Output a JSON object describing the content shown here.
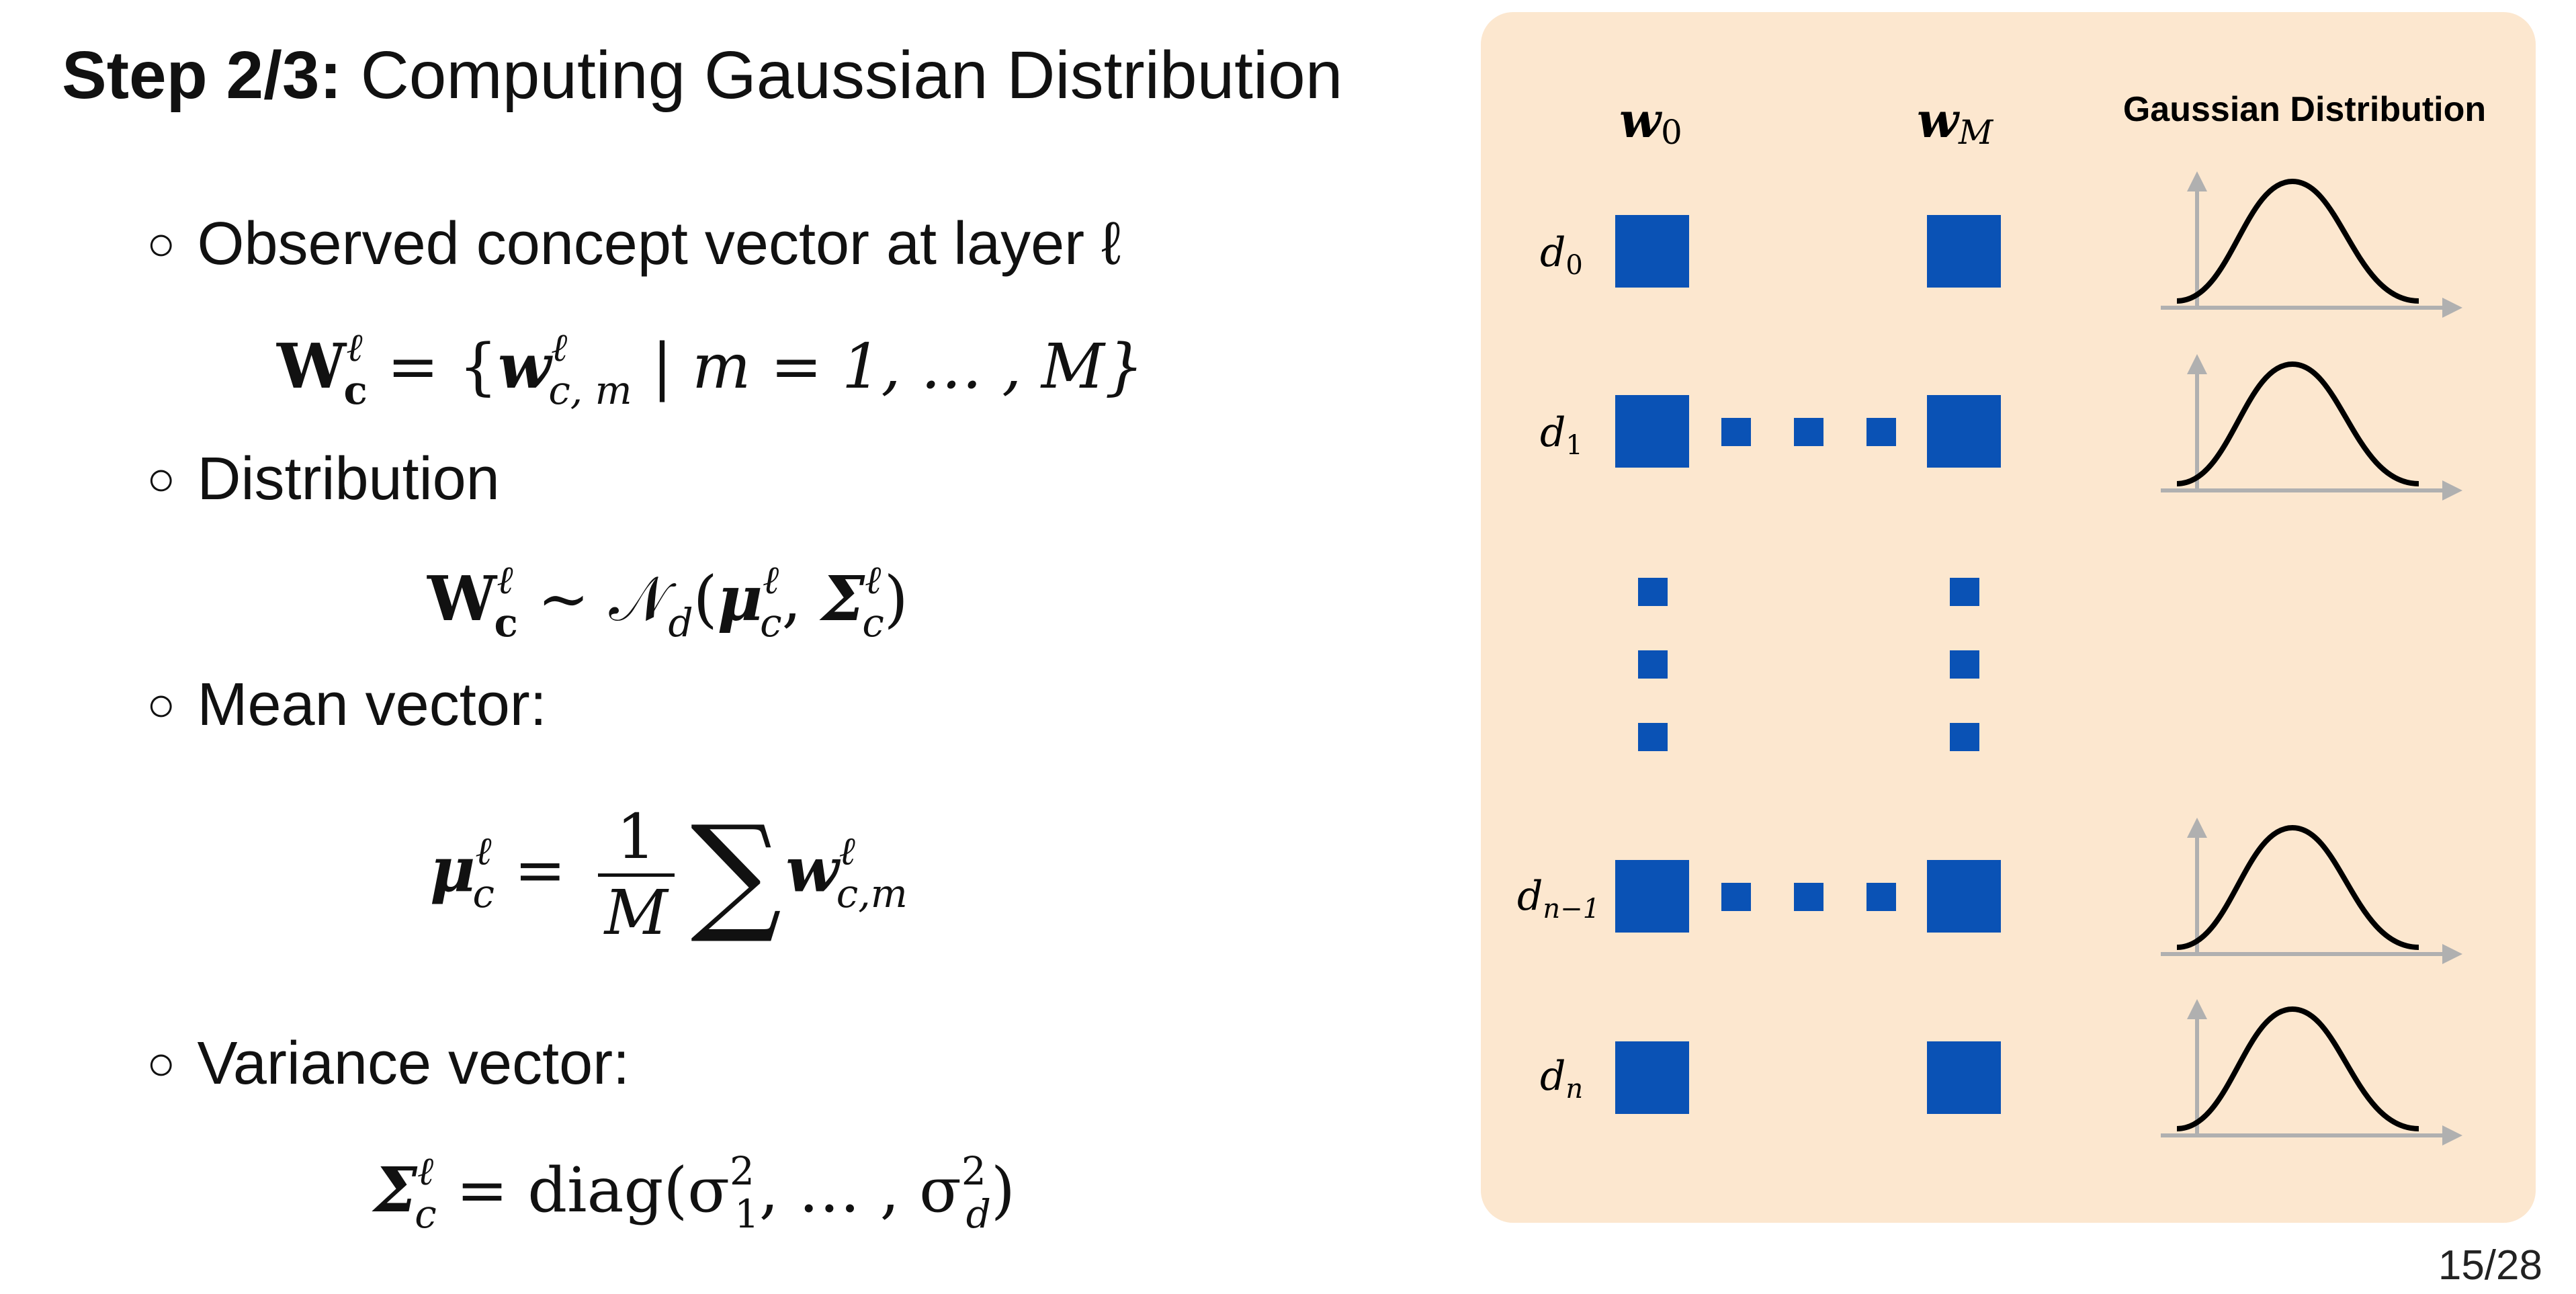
{
  "slide": {
    "title_bold": "Step 2/3:",
    "title_rest": "Computing Gaussian Distribution",
    "page": "15/28"
  },
  "bullets": [
    {
      "label": "Observed concept vector at layer ℓ"
    },
    {
      "label": "Distribution"
    },
    {
      "label": "Mean vector:"
    },
    {
      "label": "Variance vector:"
    }
  ],
  "formulas": {
    "observed": {
      "lhs": "W",
      "sub_c": "c",
      "sup_l": "ℓ",
      "rhs_open": "= {",
      "w": "w",
      "w_sub": "c, m",
      "mid": "| m = 1, … , M}"
    },
    "distribution": {
      "lhs": "W",
      "sim": "∼ 𝒩",
      "d": "d",
      "mu": "μ",
      "sigma": "Σ",
      "c": "c",
      "l": "ℓ"
    },
    "mean": {
      "mu": "μ",
      "c": "c",
      "l": "ℓ",
      "num": "1",
      "den": "M",
      "sum": "∑",
      "w": "w",
      "w_sub": "c,m"
    },
    "variance": {
      "sigma": "Σ",
      "c": "c",
      "l": "ℓ",
      "rhs": "= diag(σ",
      "one": "1",
      "two": "2",
      "mid": ", … , σ",
      "d": "d",
      "close": ")"
    }
  },
  "diagram": {
    "col_w0": "w",
    "col_w0_sub": "0",
    "col_wM": "w",
    "col_wM_sub": "M",
    "col_gauss": "Gaussian Distribution",
    "rows": [
      {
        "label": "d",
        "sub": "0"
      },
      {
        "label": "d",
        "sub": "1"
      },
      {
        "label": "d",
        "sub": "n−1"
      },
      {
        "label": "d",
        "sub": "n"
      }
    ],
    "square_color": "#0a52b5",
    "axis_color": "#b0b0b0",
    "curve_color": "#000000"
  }
}
